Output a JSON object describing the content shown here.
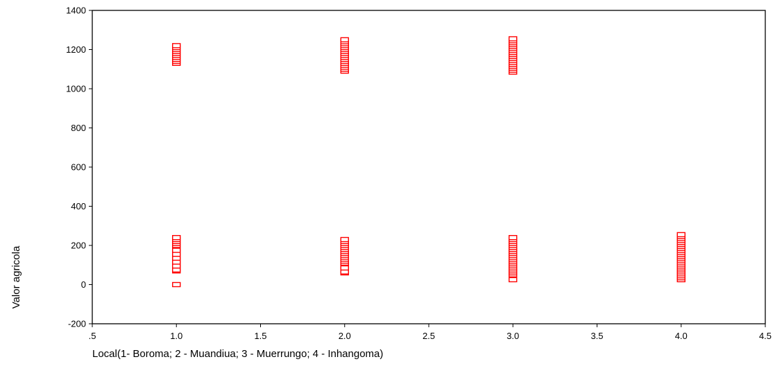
{
  "chart_data": {
    "type": "scatter",
    "title": "",
    "xlabel": "Local(1- Boroma; 2 - Muandiua; 3 - Muerrungo; 4 - Inhangoma)",
    "ylabel": "Valor agricola",
    "xlim": [
      0.5,
      4.5
    ],
    "ylim": [
      -200,
      1400
    ],
    "x_ticks": [
      0.5,
      1.0,
      1.5,
      2.0,
      2.5,
      3.0,
      3.5,
      4.0,
      4.5
    ],
    "x_tick_labels": [
      ".5",
      "1.0",
      "1.5",
      "2.0",
      "2.5",
      "3.0",
      "3.5",
      "4.0",
      "4.5"
    ],
    "y_ticks": [
      -200,
      0,
      200,
      400,
      600,
      800,
      1000,
      1200,
      1400
    ],
    "y_tick_labels": [
      "-200",
      "0",
      "200",
      "400",
      "600",
      "800",
      "1000",
      "1200",
      "1400"
    ],
    "grid": false,
    "marker": "square-open",
    "marker_color": "#ff0000",
    "series": [
      {
        "x": [
          1,
          1,
          1,
          1,
          1,
          1,
          1,
          1,
          1,
          1,
          1,
          1,
          1,
          1,
          1,
          1,
          1,
          1,
          1,
          1,
          1,
          1,
          1,
          1,
          1,
          1,
          1,
          1,
          1,
          1,
          1,
          1,
          1,
          1,
          1
        ],
        "y": [
          1130,
          1140,
          1150,
          1160,
          1170,
          1180,
          1190,
          1200,
          1210,
          1220,
          0,
          70,
          80,
          90,
          100,
          110,
          120,
          130,
          140,
          150,
          160,
          170,
          180,
          190,
          200,
          210,
          220,
          230,
          240,
          75,
          95,
          115,
          135,
          155,
          175
        ]
      },
      {
        "x": [
          2,
          2,
          2,
          2,
          2,
          2,
          2,
          2,
          2,
          2,
          2,
          2,
          2,
          2,
          2,
          2,
          2,
          2,
          2,
          2,
          2,
          2,
          2,
          2,
          2,
          2,
          2,
          2,
          2,
          2,
          2,
          2,
          2,
          2,
          2,
          2,
          2
        ],
        "y": [
          1090,
          1100,
          1110,
          1120,
          1130,
          1140,
          1150,
          1160,
          1170,
          1180,
          1190,
          1200,
          1210,
          1220,
          1230,
          1240,
          1250,
          60,
          70,
          80,
          90,
          100,
          110,
          120,
          130,
          140,
          150,
          160,
          170,
          180,
          190,
          200,
          210,
          220,
          230,
          65,
          85
        ]
      },
      {
        "x": [
          3,
          3,
          3,
          3,
          3,
          3,
          3,
          3,
          3,
          3,
          3,
          3,
          3,
          3,
          3,
          3,
          3,
          3,
          3,
          3,
          3,
          3,
          3,
          3,
          3,
          3,
          3,
          3,
          3,
          3,
          3,
          3,
          3,
          3,
          3,
          3,
          3,
          3,
          3
        ],
        "y": [
          1085,
          1095,
          1105,
          1115,
          1125,
          1135,
          1145,
          1155,
          1165,
          1175,
          1185,
          1195,
          1205,
          1215,
          1225,
          1235,
          1245,
          1255,
          25,
          50,
          60,
          70,
          80,
          90,
          100,
          110,
          120,
          130,
          140,
          150,
          160,
          170,
          180,
          190,
          200,
          210,
          220,
          230,
          240
        ]
      },
      {
        "x": [
          4,
          4,
          4,
          4,
          4,
          4,
          4,
          4,
          4,
          4,
          4,
          4,
          4,
          4,
          4,
          4,
          4,
          4,
          4,
          4,
          4,
          4,
          4,
          4
        ],
        "y": [
          25,
          35,
          45,
          55,
          65,
          75,
          85,
          95,
          105,
          115,
          125,
          135,
          145,
          155,
          165,
          175,
          185,
          195,
          205,
          215,
          225,
          235,
          245,
          255
        ]
      }
    ]
  }
}
